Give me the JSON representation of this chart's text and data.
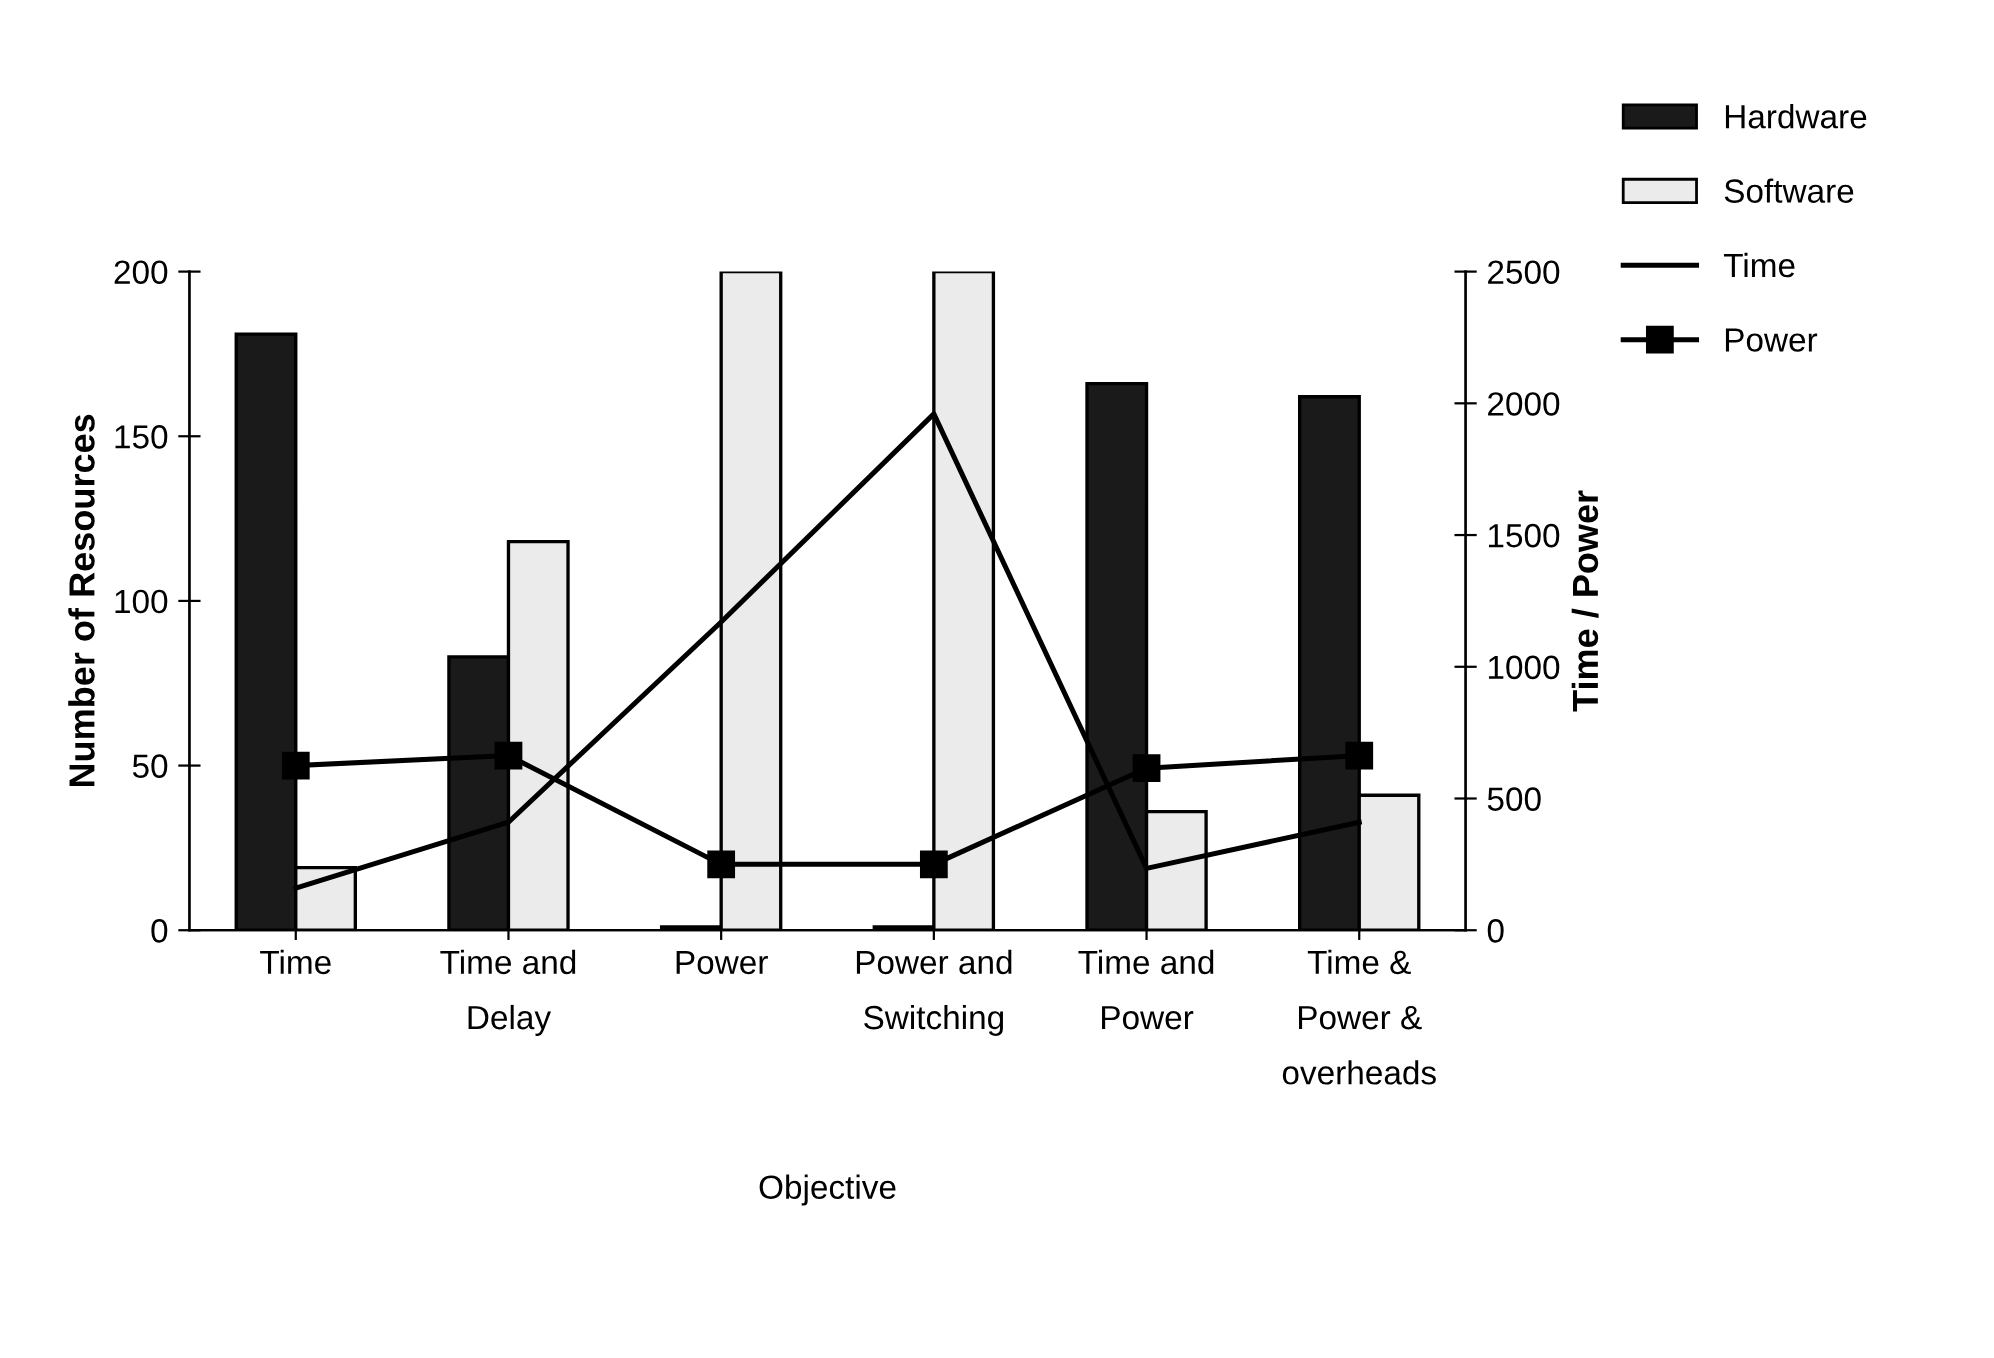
{
  "chart_data": {
    "type": "bar",
    "xlabel": "Objective",
    "ylabel": "Number of Resources",
    "y2label": "Time / Power",
    "categories": [
      "Time",
      "Time and\nDelay",
      "Power",
      "Power and\nSwitching",
      "Time and\nPower",
      "Time &\nPower &\noverheads"
    ],
    "series": [
      {
        "name": "Hardware",
        "color": "#1a1a1a",
        "values": [
          181,
          83,
          1,
          1,
          166,
          162
        ]
      },
      {
        "name": "Software",
        "color": "#ebebeb",
        "values": [
          19,
          118,
          200,
          200,
          36,
          41
        ]
      },
      {
        "name": "Time",
        "type": "line",
        "axis": "y2",
        "color": "#000000",
        "marker": "none",
        "values": [
          160,
          410,
          1170,
          1960,
          235,
          410
        ]
      },
      {
        "name": "Power",
        "type": "line",
        "axis": "y2",
        "color": "#000000",
        "marker": "square",
        "values": [
          625,
          663,
          250,
          250,
          615,
          663
        ]
      }
    ],
    "ylim": [
      0,
      200
    ],
    "yticks": [
      0,
      50,
      100,
      150,
      200
    ],
    "y2lim": [
      0,
      2500
    ],
    "y2ticks": [
      0,
      500,
      1000,
      1500,
      2000,
      2500
    ],
    "grid": false,
    "legend": "top right"
  }
}
